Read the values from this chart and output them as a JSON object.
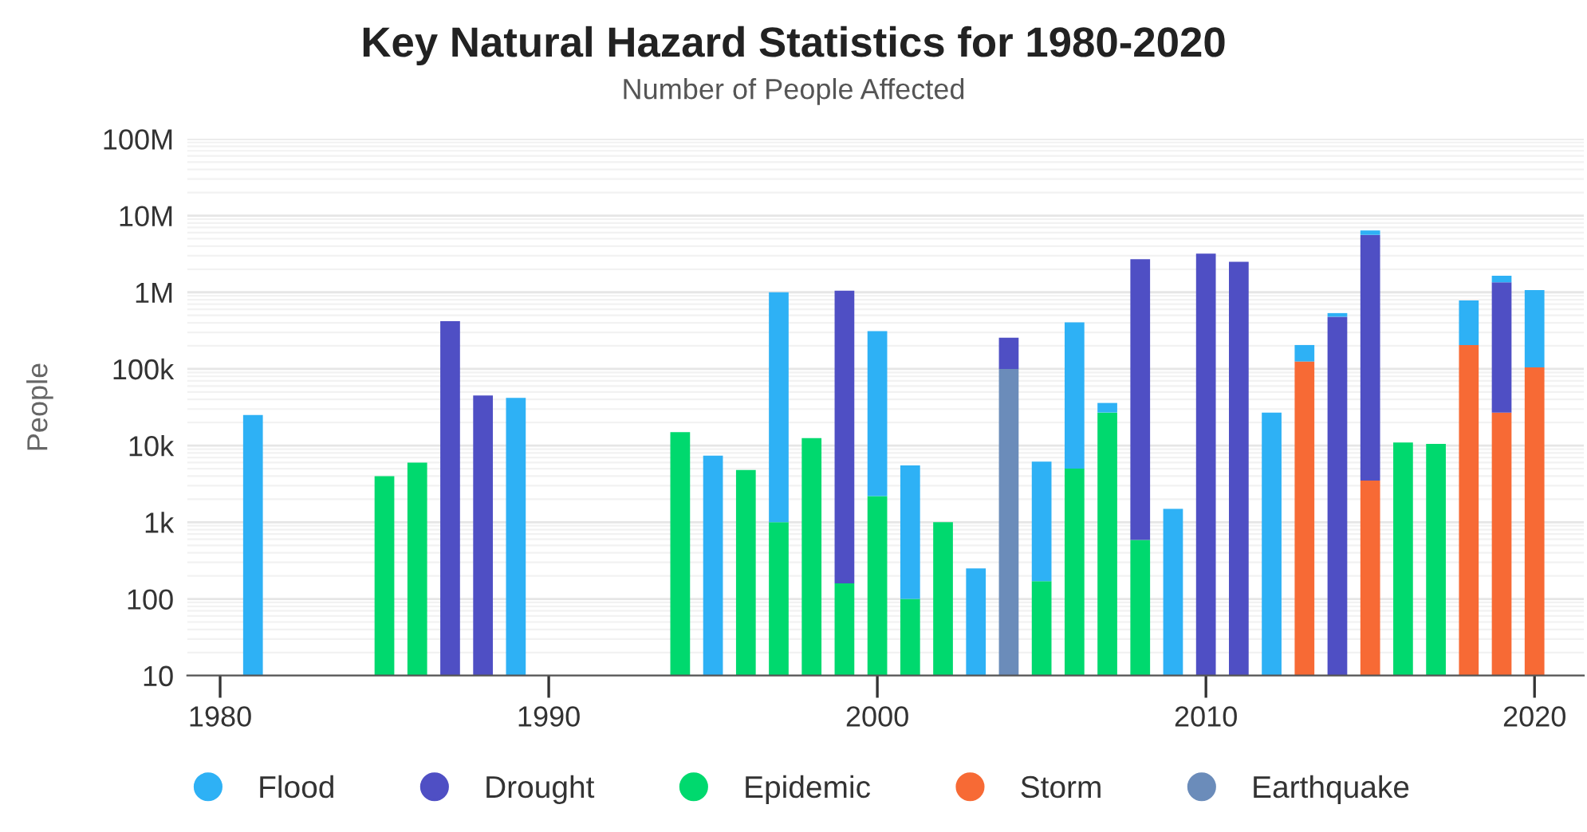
{
  "chart_data": {
    "type": "bar",
    "title": "Key Natural Hazard Statistics for 1980-2020",
    "subtitle": "Number of People Affected",
    "ylabel": "People",
    "stacked": true,
    "log": "y",
    "grid": "y",
    "legend": "bottom",
    "xlim": [
      1979,
      2021.5
    ],
    "xticks": [
      1980,
      1990,
      2000,
      2010,
      2020
    ],
    "ylim": [
      10,
      100000000
    ],
    "yticks": [
      10,
      100,
      {
        "value": 1000,
        "label": "1k"
      },
      {
        "value": 10000,
        "label": "10k"
      },
      {
        "value": 100000,
        "label": "100k"
      },
      {
        "value": 1000000,
        "label": "1M"
      },
      {
        "value": 10000000,
        "label": "10M"
      },
      {
        "value": 100000000,
        "label": "100M"
      }
    ],
    "x": [
      1981,
      1985,
      1986,
      1987,
      1988,
      1989,
      1994,
      1995,
      1996,
      1997,
      1998,
      1999,
      2000,
      2001,
      2002,
      2003,
      2004,
      2005,
      2006,
      2007,
      2008,
      2009,
      2010,
      2011,
      2012,
      2013,
      2014,
      2015,
      2016,
      2017,
      2018,
      2019,
      2020
    ],
    "series": [
      {
        "name": "Earthquake",
        "color": "#6b8cba",
        "values": [
          null,
          null,
          null,
          null,
          null,
          null,
          null,
          null,
          null,
          null,
          null,
          null,
          null,
          null,
          null,
          null,
          100000,
          null,
          null,
          null,
          null,
          null,
          null,
          null,
          null,
          null,
          null,
          null,
          null,
          null,
          null,
          null,
          null
        ]
      },
      {
        "name": "Storm",
        "color": "#f76a35",
        "values": [
          null,
          null,
          null,
          null,
          null,
          null,
          null,
          null,
          null,
          null,
          null,
          null,
          null,
          null,
          null,
          null,
          null,
          null,
          null,
          null,
          null,
          null,
          null,
          null,
          null,
          125000,
          null,
          3500,
          null,
          null,
          205000,
          27000,
          105000
        ]
      },
      {
        "name": "Epidemic",
        "color": "#00d96e",
        "values": [
          null,
          4000,
          6000,
          null,
          null,
          null,
          15000,
          null,
          4800,
          1000,
          12500,
          160,
          2200,
          100,
          1000,
          null,
          null,
          170,
          5000,
          27000,
          590,
          null,
          null,
          null,
          null,
          null,
          null,
          null,
          11000,
          10500,
          null,
          null,
          null
        ]
      },
      {
        "name": "Drought",
        "color": "#4f4fc4",
        "values": [
          null,
          null,
          null,
          420000,
          45000,
          null,
          null,
          null,
          null,
          null,
          null,
          1050000,
          null,
          null,
          null,
          null,
          155000,
          null,
          null,
          null,
          2700000,
          null,
          3200000,
          2500000,
          null,
          null,
          480000,
          5600000,
          null,
          null,
          null,
          1320000,
          null
        ]
      },
      {
        "name": "Flood",
        "color": "#2eb1f5",
        "values": [
          25000,
          null,
          null,
          null,
          null,
          42000,
          null,
          7400,
          null,
          1000000,
          null,
          null,
          310000,
          5400,
          null,
          250,
          null,
          6000,
          400000,
          9000,
          null,
          1500,
          null,
          null,
          27000,
          80000,
          55000,
          800000,
          null,
          null,
          575000,
          300000,
          965000
        ]
      }
    ]
  }
}
